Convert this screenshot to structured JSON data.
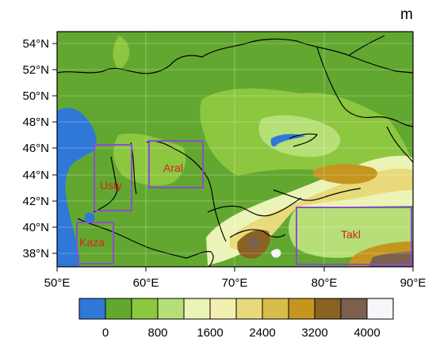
{
  "map": {
    "unit_label": "m",
    "lon_ticks": [
      "50°E",
      "60°E",
      "70°E",
      "80°E",
      "90°E"
    ],
    "lat_ticks": [
      "54°N",
      "52°N",
      "50°N",
      "48°N",
      "46°N",
      "44°N",
      "42°N",
      "40°N",
      "38°N"
    ],
    "regions": [
      {
        "label": "Usty"
      },
      {
        "label": "Aral"
      },
      {
        "label": "Kaza"
      },
      {
        "label": "Takl"
      }
    ],
    "region_box_color": "#8a4fd0",
    "region_label_color": "#d2261e"
  },
  "colorbar": {
    "colors": [
      "#2f78d8",
      "#62a830",
      "#8dc63f",
      "#b6df78",
      "#ecf3b6",
      "#f3efb0",
      "#e8d97a",
      "#d8bd4c",
      "#c49620",
      "#8a6222",
      "#7b6050",
      "#f6f6fb"
    ],
    "tick_labels": [
      "0",
      "800",
      "1600",
      "2400",
      "3200",
      "4000"
    ]
  }
}
